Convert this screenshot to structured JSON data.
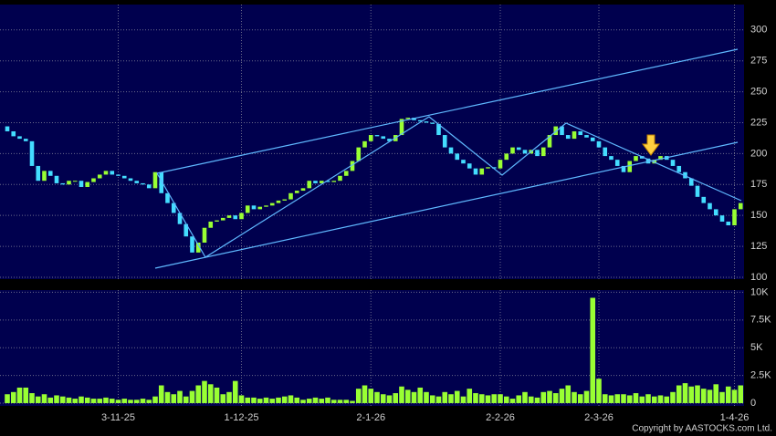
{
  "chart_data": {
    "type": "candlestick",
    "open": [
      222,
      218,
      214,
      212,
      210,
      190,
      178,
      186,
      182,
      176,
      175,
      178,
      178,
      173,
      177,
      180,
      183,
      186,
      183,
      182,
      180,
      178,
      176,
      175,
      172,
      185,
      168,
      160,
      152,
      143,
      133,
      120,
      128,
      140,
      145,
      146,
      148,
      150,
      147,
      152,
      158,
      155,
      157,
      158,
      160,
      162,
      163,
      168,
      170,
      172,
      178,
      176,
      178,
      177,
      178,
      182,
      186,
      194,
      205,
      210,
      215,
      214,
      212,
      210,
      215,
      228,
      229,
      227,
      226,
      225,
      224,
      215,
      205,
      200,
      195,
      192,
      188,
      183,
      188,
      189,
      188,
      195,
      200,
      205,
      203,
      200,
      203,
      198,
      205,
      215,
      222,
      215,
      212,
      218,
      215,
      213,
      210,
      205,
      198,
      195,
      190,
      185,
      194,
      198,
      196,
      192,
      195,
      198,
      195,
      190,
      185,
      180,
      174,
      165,
      160,
      155,
      150,
      145,
      142,
      155
    ],
    "close": [
      218,
      214,
      212,
      210,
      190,
      178,
      186,
      182,
      176,
      175,
      178,
      178,
      173,
      177,
      180,
      183,
      186,
      183,
      182,
      180,
      178,
      176,
      175,
      172,
      185,
      168,
      160,
      152,
      143,
      133,
      120,
      128,
      140,
      145,
      146,
      148,
      150,
      147,
      152,
      158,
      155,
      157,
      158,
      160,
      162,
      163,
      168,
      170,
      172,
      178,
      176,
      178,
      177,
      178,
      182,
      186,
      194,
      205,
      210,
      215,
      214,
      212,
      210,
      215,
      228,
      229,
      227,
      226,
      225,
      224,
      215,
      205,
      200,
      195,
      192,
      188,
      183,
      188,
      189,
      188,
      195,
      200,
      205,
      203,
      200,
      203,
      198,
      205,
      215,
      222,
      215,
      212,
      218,
      215,
      213,
      210,
      205,
      198,
      195,
      190,
      185,
      194,
      198,
      196,
      192,
      195,
      198,
      195,
      190,
      185,
      180,
      174,
      165,
      160,
      155,
      150,
      145,
      142,
      155,
      160
    ],
    "volume": [
      800,
      1000,
      1400,
      1400,
      900,
      600,
      800,
      500,
      700,
      600,
      500,
      400,
      600,
      500,
      400,
      400,
      500,
      400,
      300,
      400,
      300,
      300,
      400,
      300,
      600,
      1600,
      1000,
      800,
      1100,
      600,
      1100,
      1600,
      2000,
      1700,
      1400,
      800,
      1000,
      2000,
      700,
      500,
      500,
      400,
      500,
      400,
      500,
      600,
      700,
      500,
      300,
      400,
      500,
      400,
      500,
      300,
      300,
      300,
      200,
      1300,
      1600,
      1300,
      1000,
      800,
      700,
      900,
      1500,
      1200,
      1000,
      1400,
      1000,
      700,
      600,
      1000,
      800,
      1100,
      600,
      1300,
      900,
      800,
      700,
      800,
      800,
      600,
      400,
      700,
      1000,
      600,
      500,
      1000,
      1100,
      900,
      1300,
      1600,
      1000,
      800,
      1100,
      9500,
      2200,
      800,
      700,
      800,
      800,
      700,
      900,
      600,
      800,
      600,
      700,
      600,
      1000,
      1600,
      1800,
      1500,
      1600,
      1300,
      1200,
      1700,
      1000,
      1500,
      1200,
      1600
    ],
    "up_color": "#99ff33",
    "down_color": "#44ddff",
    "volume_color": "#99ff33",
    "ylim": [
      98.5,
      320.5
    ],
    "yticks": [
      100,
      125,
      150,
      175,
      200,
      225,
      250,
      275,
      300
    ],
    "y2lim": [
      -250,
      10200
    ],
    "y2ticks": [
      0,
      {
        "value": 2500,
        "label": "2.5K"
      },
      {
        "value": 5000,
        "label": "5K"
      },
      {
        "value": 7500,
        "label": "7.5K"
      },
      {
        "value": 10000,
        "label": "10K"
      }
    ],
    "xticks": [
      {
        "value": 18,
        "label": "3-11-25"
      },
      {
        "value": 38,
        "label": "1-12-25"
      },
      {
        "value": 59,
        "label": "2-1-26"
      },
      {
        "value": 80,
        "label": "2-2-26"
      },
      {
        "value": 96,
        "label": "2-3-26"
      },
      {
        "value": 118,
        "label": "1-4-26"
      }
    ],
    "grid": true,
    "copyright": "Copyright by AASTOCKS.com Ltd."
  }
}
